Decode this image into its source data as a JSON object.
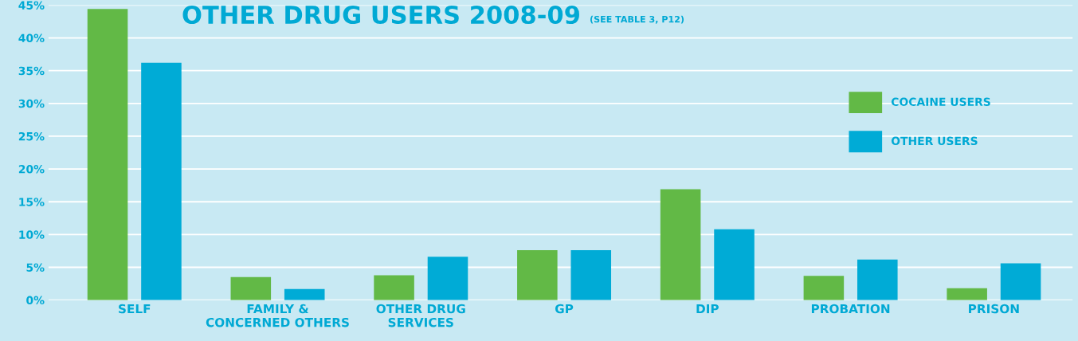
{
  "chart_data": {
    "type": "bar",
    "title": "OTHER DRUG USERS 2008-09",
    "subtitle": "(SEE TABLE 3, P12)",
    "categories": [
      "SELF",
      "FAMILY &\nCONCERNED OTHERS",
      "OTHER DRUG\nSERVICES",
      "GP",
      "DIP",
      "PROBATION",
      "PRISON"
    ],
    "series": [
      {
        "name": "COCAINE USERS",
        "color": "#62b946",
        "values": [
          44.4,
          3.5,
          3.8,
          7.6,
          16.9,
          3.7,
          1.8
        ]
      },
      {
        "name": "OTHER USERS",
        "color": "#00abd6",
        "values": [
          36.2,
          1.7,
          6.6,
          7.6,
          10.8,
          6.2,
          5.6
        ]
      }
    ],
    "ylim": [
      0,
      45
    ],
    "yticks": [
      {
        "value": 0,
        "label": "0%"
      },
      {
        "value": 5,
        "label": "5%"
      },
      {
        "value": 10,
        "label": "10%"
      },
      {
        "value": 15,
        "label": "15%"
      },
      {
        "value": 20,
        "label": "20%"
      },
      {
        "value": 25,
        "label": "25%"
      },
      {
        "value": 30,
        "label": "30%"
      },
      {
        "value": 35,
        "label": "35%"
      },
      {
        "value": 40,
        "label": "40%"
      },
      {
        "value": 45,
        "label": "45%"
      }
    ],
    "grid": "y",
    "legend": "top right"
  }
}
